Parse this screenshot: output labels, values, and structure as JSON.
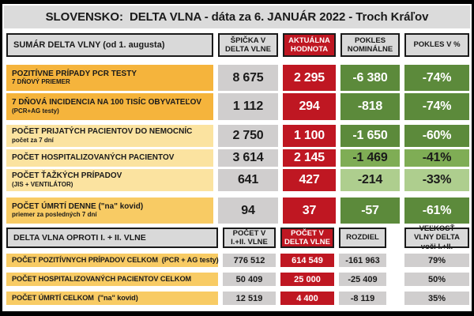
{
  "title": "SLOVENSKO:  DELTA VLNA - dáta za 6. JANUÁR 2022 - Troch Kráľov",
  "palette": {
    "frame": "#000000",
    "titlebar": "#dbdbdb",
    "headerbg": "#d9d9d9",
    "headerborder": "#1a1a1a",
    "red": "#bf1722",
    "gray": "#d0cece",
    "amber": "#f5b43c",
    "ambermid": "#f8cb64",
    "pale": "#fbe3a0",
    "gdark": "#5c8a3b",
    "gmid": "#7fad55",
    "glight": "#aece8e",
    "textdark": "#1a1a1a",
    "textlight": "#ffffff"
  },
  "sections": [
    {
      "header": [
        "SUMÁR DELTA VLNY (od 1. augusta)",
        "ŠPIČKA V DELTA VLNE",
        "AKTUÁLNA HODNOTA",
        "POKLES NOMINÁLNE",
        "POKLES V %"
      ],
      "rows": [
        {
          "label": "POZITÍVNE PRÍPADY PCR TESTY",
          "sublabel": "7 DŇOVÝ PRIEMER",
          "label_tone": "amber",
          "cells": [
            {
              "v": "8 675",
              "tone": "gray"
            },
            {
              "v": "2 295",
              "tone": "red"
            },
            {
              "v": "-6 380",
              "tone": "gdark"
            },
            {
              "v": "-74%",
              "tone": "gdark"
            }
          ]
        },
        {
          "label": "7 DŇOVÁ INCIDENCIA NA 100 TISÍC OBYVATEĽOV",
          "sublabel": "(PCR+AG testy)",
          "label_tone": "amber",
          "cells": [
            {
              "v": "1 112",
              "tone": "gray"
            },
            {
              "v": "294",
              "tone": "red"
            },
            {
              "v": "-818",
              "tone": "gdark"
            },
            {
              "v": "-74%",
              "tone": "gdark"
            }
          ]
        },
        {
          "label": "POČET PRIJATÝCH PACIENTOV DO NEMOCNÍC",
          "sublabel": "počet za 7 dní",
          "label_tone": "pale",
          "cells": [
            {
              "v": "2 750",
              "tone": "gray"
            },
            {
              "v": "1 100",
              "tone": "red"
            },
            {
              "v": "-1 650",
              "tone": "gdark"
            },
            {
              "v": "-60%",
              "tone": "gdark"
            }
          ]
        },
        {
          "label": "POČET HOSPITALIZOVANÝCH PACIENTOV",
          "sublabel": "",
          "label_tone": "pale",
          "cells": [
            {
              "v": "3 614",
              "tone": "gray"
            },
            {
              "v": "2 145",
              "tone": "red"
            },
            {
              "v": "-1 469",
              "tone": "gmid"
            },
            {
              "v": "-41%",
              "tone": "gmid"
            }
          ]
        },
        {
          "label": "POČET ŤAŽKÝCH PRÍPADOV",
          "sublabel": "(JIS + VENTILÁTOR)",
          "label_tone": "pale",
          "cells": [
            {
              "v": "641",
              "tone": "gray"
            },
            {
              "v": "427",
              "tone": "red"
            },
            {
              "v": "-214",
              "tone": "glight"
            },
            {
              "v": "-33%",
              "tone": "glight"
            }
          ]
        },
        {
          "label": "POČET ÚMRTÍ DENNE (\"na\" kovid)",
          "sublabel": "priemer za posledných 7 dní",
          "label_tone": "ambermid",
          "cells": [
            {
              "v": "94",
              "tone": "gray"
            },
            {
              "v": "37",
              "tone": "red"
            },
            {
              "v": "-57",
              "tone": "gdark"
            },
            {
              "v": "-61%",
              "tone": "gdark"
            }
          ]
        }
      ]
    },
    {
      "header": [
        "DELTA VLNA OPROTI I. + II. VLNE",
        "POČET V I.+II. VLNE",
        "POČET V DELTA VLNE",
        "ROZDIEL",
        "VEĽKOSŤ VLNY DELTA voči I.+II."
      ],
      "rows": [
        {
          "label": "POČET POZITÍVNYCH PRÍPADOV CELKOM  (PCR + AG testy)",
          "sublabel": "",
          "label_tone": "ambermid",
          "cells": [
            {
              "v": "776 512",
              "tone": "gray"
            },
            {
              "v": "614 549",
              "tone": "red"
            },
            {
              "v": "-161 963",
              "tone": "gray"
            },
            {
              "v": "79%",
              "tone": "gray"
            }
          ]
        },
        {
          "label": "POČET HOSPITALIZOVANÝCH PACIENTOV CELKOM",
          "sublabel": "",
          "label_tone": "ambermid",
          "cells": [
            {
              "v": "50 409",
              "tone": "gray"
            },
            {
              "v": "25 000",
              "tone": "red"
            },
            {
              "v": "-25 409",
              "tone": "gray"
            },
            {
              "v": "50%",
              "tone": "gray"
            }
          ]
        },
        {
          "label": "POČET ÚMRTÍ CELKOM  (\"na\" kovid)",
          "sublabel": "",
          "label_tone": "ambermid",
          "cells": [
            {
              "v": "12 519",
              "tone": "gray"
            },
            {
              "v": "4 400",
              "tone": "red"
            },
            {
              "v": "-8 119",
              "tone": "gray"
            },
            {
              "v": "35%",
              "tone": "gray"
            }
          ]
        }
      ]
    }
  ],
  "chart_data": [
    {
      "type": "table",
      "title": "SLOVENSKO: DELTA VLNA - dáta za 6. JANUÁR 2022 - Troch Kráľov",
      "columns": [
        "SUMÁR DELTA VLNY (od 1. augusta)",
        "ŠPIČKA V DELTA VLNE",
        "AKTUÁLNA HODNOTA",
        "POKLES NOMINÁLNE",
        "POKLES V %"
      ],
      "rows": [
        [
          "POZITÍVNE PRÍPADY PCR TESTY - 7 DŇOVÝ PRIEMER",
          8675,
          2295,
          -6380,
          -74
        ],
        [
          "7 DŇOVÁ INCIDENCIA NA 100 TISÍC OBYVATEĽOV (PCR+AG testy)",
          1112,
          294,
          -818,
          -74
        ],
        [
          "POČET PRIJATÝCH PACIENTOV DO NEMOCNÍC (počet za 7 dní)",
          2750,
          1100,
          -1650,
          -60
        ],
        [
          "POČET HOSPITALIZOVANÝCH PACIENTOV",
          3614,
          2145,
          -1469,
          -41
        ],
        [
          "POČET ŤAŽKÝCH PRÍPADOV (JIS + VENTILÁTOR)",
          641,
          427,
          -214,
          -33
        ],
        [
          "POČET ÚMRTÍ DENNE (\"na\" kovid) - priemer za posledných 7 dní",
          94,
          37,
          -57,
          -61
        ]
      ]
    },
    {
      "type": "table",
      "title": "DELTA VLNA OPROTI I. + II. VLNE",
      "columns": [
        "DELTA VLNA OPROTI I. + II. VLNE",
        "POČET V I.+II. VLNE",
        "POČET V DELTA VLNE",
        "ROZDIEL",
        "VEĽKOSŤ VLNY DELTA voči I.+II. (%)"
      ],
      "rows": [
        [
          "POČET POZITÍVNYCH PRÍPADOV CELKOM (PCR + AG testy)",
          776512,
          614549,
          -161963,
          79
        ],
        [
          "POČET HOSPITALIZOVANÝCH PACIENTOV CELKOM",
          50409,
          25000,
          -25409,
          50
        ],
        [
          "POČET ÚMRTÍ CELKOM (\"na\" kovid)",
          12519,
          4400,
          -8119,
          35
        ]
      ]
    }
  ]
}
